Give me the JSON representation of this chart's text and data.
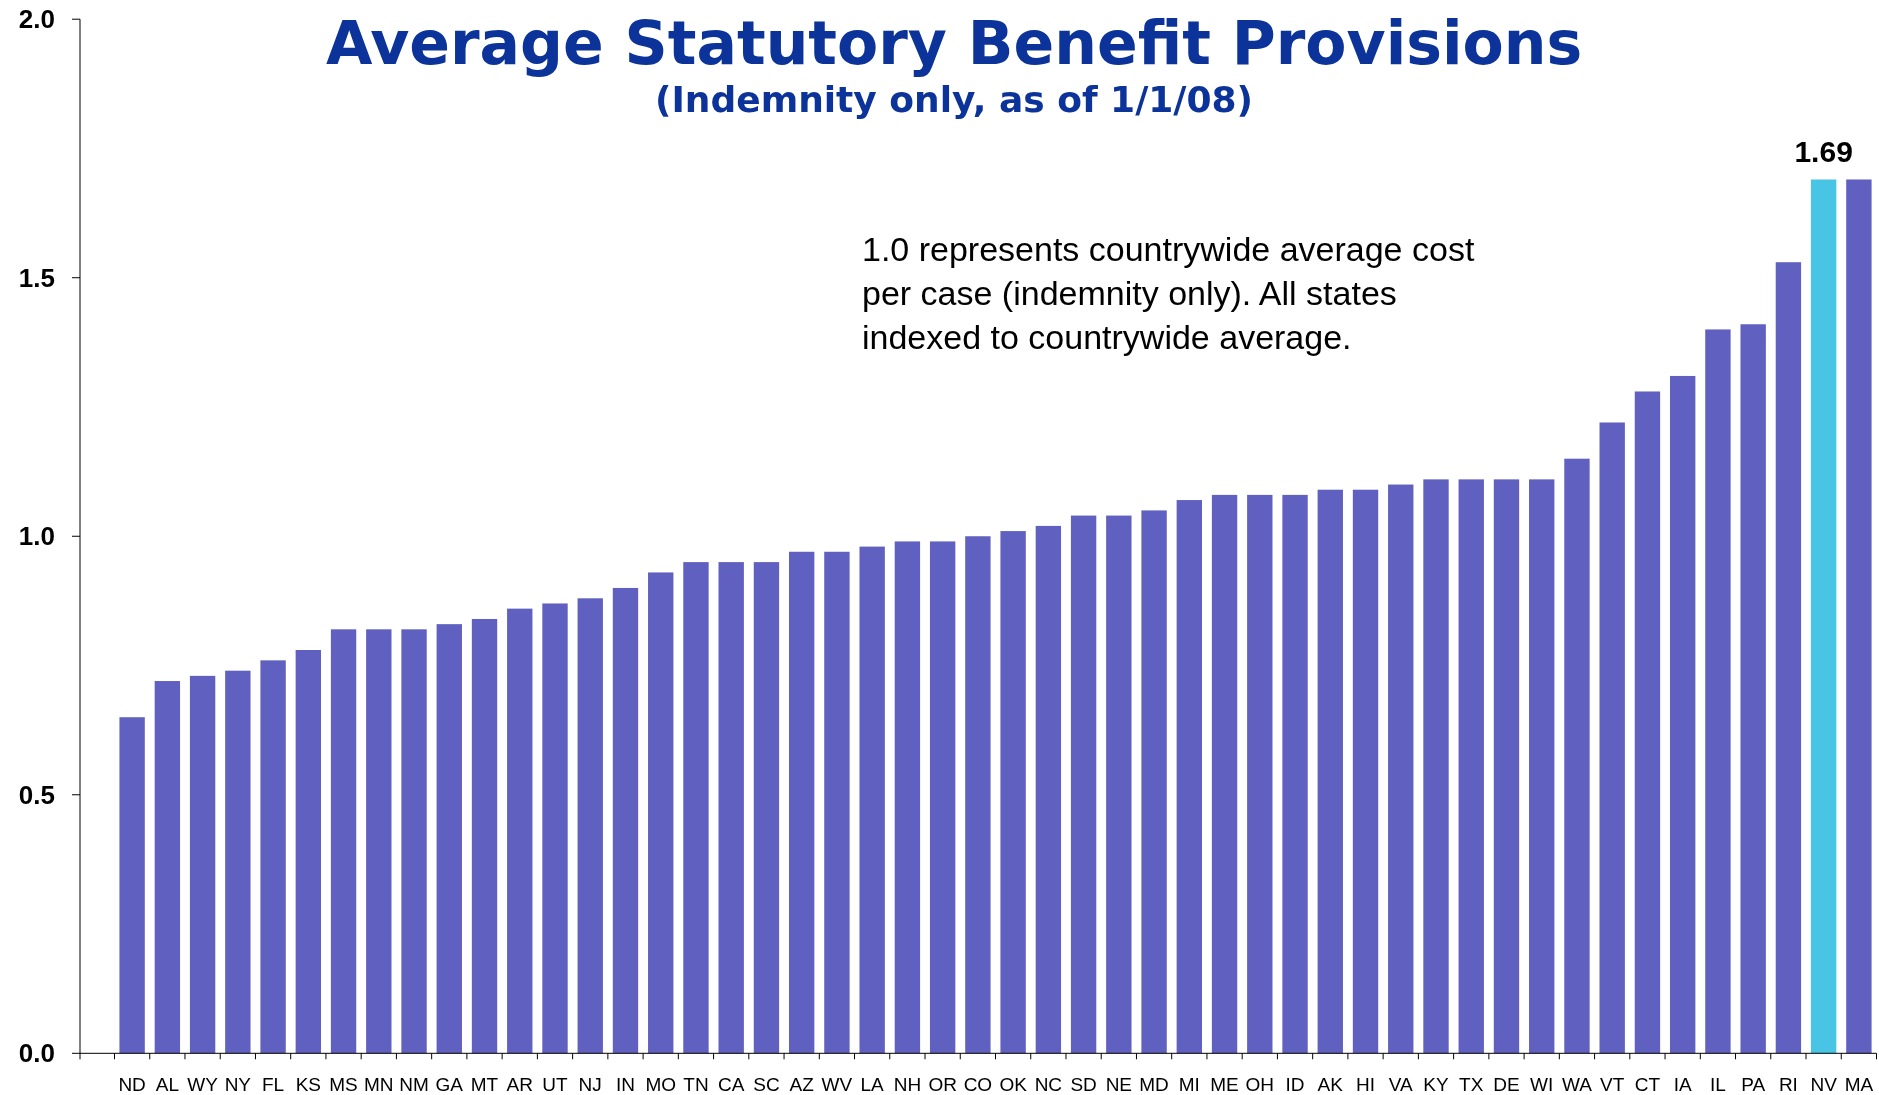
{
  "chart_data": {
    "type": "bar",
    "title": "Average Statutory Benefit Provisions",
    "subtitle": "(Indemnity only, as of 1/1/08)",
    "annotations": [
      "1.0 represents countrywide average cost per case (indemnity only). All states indexed to countrywide average."
    ],
    "categories": [
      "ND",
      "AL",
      "WY",
      "NY",
      "FL",
      "KS",
      "MS",
      "MN",
      "NM",
      "GA",
      "MT",
      "AR",
      "UT",
      "NJ",
      "IN",
      "MO",
      "TN",
      "CA",
      "SC",
      "AZ",
      "WV",
      "LA",
      "NH",
      "OR",
      "CO",
      "OK",
      "NC",
      "SD",
      "NE",
      "MD",
      "MI",
      "ME",
      "OH",
      "ID",
      "AK",
      "HI",
      "VA",
      "KY",
      "TX",
      "DE",
      "WI",
      "WA",
      "VT",
      "CT",
      "IA",
      "IL",
      "PA",
      "RI",
      "NV",
      "MA"
    ],
    "values": [
      0.65,
      0.72,
      0.73,
      0.74,
      0.76,
      0.78,
      0.82,
      0.82,
      0.82,
      0.83,
      0.84,
      0.86,
      0.87,
      0.88,
      0.9,
      0.93,
      0.95,
      0.95,
      0.95,
      0.97,
      0.97,
      0.98,
      0.99,
      0.99,
      1.0,
      1.01,
      1.02,
      1.04,
      1.04,
      1.05,
      1.07,
      1.08,
      1.08,
      1.08,
      1.09,
      1.09,
      1.1,
      1.11,
      1.11,
      1.11,
      1.11,
      1.15,
      1.22,
      1.28,
      1.31,
      1.4,
      1.41,
      1.53,
      1.69,
      1.69
    ],
    "colors": [
      "#6060c0",
      "#6060c0",
      "#6060c0",
      "#6060c0",
      "#6060c0",
      "#6060c0",
      "#6060c0",
      "#6060c0",
      "#6060c0",
      "#6060c0",
      "#6060c0",
      "#6060c0",
      "#6060c0",
      "#6060c0",
      "#6060c0",
      "#6060c0",
      "#6060c0",
      "#6060c0",
      "#6060c0",
      "#6060c0",
      "#6060c0",
      "#6060c0",
      "#6060c0",
      "#6060c0",
      "#6060c0",
      "#6060c0",
      "#6060c0",
      "#6060c0",
      "#6060c0",
      "#6060c0",
      "#6060c0",
      "#6060c0",
      "#6060c0",
      "#6060c0",
      "#6060c0",
      "#6060c0",
      "#6060c0",
      "#6060c0",
      "#6060c0",
      "#6060c0",
      "#6060c0",
      "#6060c0",
      "#6060c0",
      "#6060c0",
      "#6060c0",
      "#6060c0",
      "#6060c0",
      "#6060c0",
      "#48c4e4",
      "#6060c0"
    ],
    "value_labels": [
      null,
      null,
      null,
      null,
      null,
      null,
      null,
      null,
      null,
      null,
      null,
      null,
      null,
      null,
      null,
      null,
      null,
      null,
      null,
      null,
      null,
      null,
      null,
      null,
      null,
      null,
      null,
      null,
      null,
      null,
      null,
      null,
      null,
      null,
      null,
      null,
      null,
      null,
      null,
      null,
      null,
      null,
      null,
      null,
      null,
      null,
      null,
      null,
      "1.69",
      null
    ],
    "ylim": [
      0,
      2
    ],
    "yticks": [
      {
        "value": 0,
        "label": "0.0"
      },
      0.5,
      {
        "value": 1,
        "label": "1.0"
      },
      1.5,
      {
        "value": 2,
        "label": "2.0"
      }
    ]
  }
}
